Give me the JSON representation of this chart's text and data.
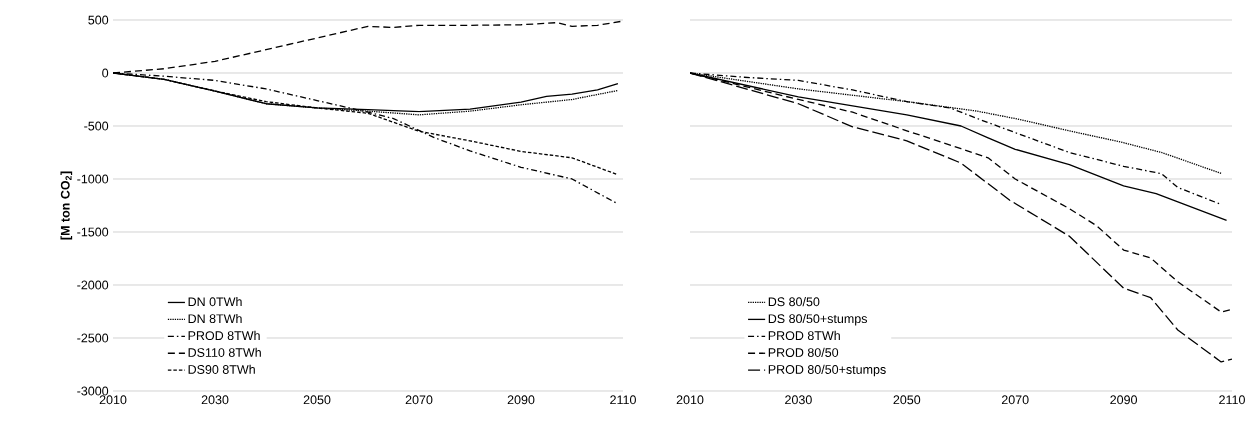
{
  "chart_data": [
    {
      "type": "line",
      "ylabel": "[M ton CO$_{2}$]",
      "xlim": [
        2010,
        2110
      ],
      "ylim": [
        -3000,
        500
      ],
      "xticks": [
        2010,
        2030,
        2050,
        2070,
        2090,
        2110
      ],
      "yticks": [
        -3000,
        -2500,
        -2000,
        -1500,
        -1000,
        -500,
        0,
        500
      ],
      "grid": "y",
      "legend": "bottom left",
      "series": [
        {
          "name": "DN 0TWh",
          "color": "#000000",
          "line_style": "solid",
          "x": [
            2010,
            2020,
            2030,
            2040,
            2050,
            2060,
            2070,
            2080,
            2090,
            2095,
            2100,
            2105,
            2109
          ],
          "values": [
            0,
            -60,
            -170,
            -290,
            -330,
            -345,
            -365,
            -340,
            -275,
            -220,
            -200,
            -160,
            -100
          ]
        },
        {
          "name": "DN 8TWh",
          "color": "#000000",
          "line_style": "dotted",
          "x": [
            2010,
            2020,
            2030,
            2040,
            2050,
            2060,
            2070,
            2080,
            2090,
            2100,
            2109
          ],
          "values": [
            0,
            -60,
            -170,
            -290,
            -330,
            -360,
            -395,
            -360,
            -300,
            -250,
            -165
          ]
        },
        {
          "name": "PROD 8TWh",
          "color": "#000000",
          "line_style": "dashdot",
          "x": [
            2010,
            2020,
            2030,
            2040,
            2050,
            2060,
            2065,
            2073,
            2080,
            2090,
            2100,
            2109
          ],
          "values": [
            0,
            -30,
            -70,
            -150,
            -260,
            -370,
            -430,
            -610,
            -735,
            -890,
            -1000,
            -1235
          ]
        },
        {
          "name": "DS110 8TWh",
          "color": "#000000",
          "line_style": "dashed",
          "x": [
            2010,
            2020,
            2030,
            2040,
            2050,
            2060,
            2065,
            2070,
            2080,
            2090,
            2097,
            2100,
            2105,
            2110
          ],
          "values": [
            0,
            40,
            110,
            220,
            330,
            440,
            430,
            450,
            450,
            455,
            475,
            440,
            450,
            490
          ]
        },
        {
          "name": "DS90 8TWh",
          "color": "#000000",
          "line_style": "short_dashed",
          "x": [
            2010,
            2020,
            2030,
            2040,
            2050,
            2060,
            2070,
            2080,
            2090,
            2100,
            2109
          ],
          "values": [
            0,
            -60,
            -170,
            -270,
            -330,
            -380,
            -550,
            -640,
            -740,
            -800,
            -960
          ]
        }
      ]
    },
    {
      "type": "line",
      "xlim": [
        2010,
        2110
      ],
      "ylim": [
        -3000,
        500
      ],
      "xticks": [
        2010,
        2030,
        2050,
        2070,
        2090,
        2110
      ],
      "yticks": [
        -3000,
        -2500,
        -2000,
        -1500,
        -1000,
        -500,
        0,
        500
      ],
      "grid": "y",
      "legend": "bottom left",
      "tick_labels": "x",
      "series": [
        {
          "name": "DS 80/50",
          "color": "#000000",
          "line_style": "dotted",
          "x": [
            2010,
            2030,
            2050,
            2063,
            2070,
            2080,
            2090,
            2097,
            2108
          ],
          "values": [
            0,
            -150,
            -270,
            -360,
            -430,
            -545,
            -658,
            -750,
            -947
          ]
        },
        {
          "name": "DS 80/50+stumps",
          "color": "#000000",
          "line_style": "solid",
          "x": [
            2010,
            2030,
            2050,
            2060,
            2065,
            2070,
            2080,
            2090,
            2096,
            2109
          ],
          "values": [
            0,
            -225,
            -395,
            -500,
            -613,
            -720,
            -865,
            -1064,
            -1139,
            -1390
          ]
        },
        {
          "name": "PROD 8TWh",
          "color": "#000000",
          "line_style": "dashdot",
          "x": [
            2010,
            2020,
            2030,
            2040,
            2050,
            2058,
            2063,
            2072,
            2080,
            2090,
            2097,
            2100,
            2108
          ],
          "values": [
            0,
            -40,
            -70,
            -160,
            -270,
            -330,
            -430,
            -600,
            -750,
            -880,
            -950,
            -1080,
            -1240
          ]
        },
        {
          "name": "PROD 80/50",
          "color": "#000000",
          "line_style": "dashed",
          "x": [
            2010,
            2030,
            2040,
            2050,
            2060,
            2065,
            2070,
            2080,
            2085,
            2090,
            2095,
            2100,
            2108,
            2110
          ],
          "values": [
            0,
            -250,
            -370,
            -545,
            -714,
            -800,
            -1000,
            -1280,
            -1440,
            -1670,
            -1745,
            -1970,
            -2255,
            -2230
          ]
        },
        {
          "name": "PROD 80/50+stumps",
          "color": "#000000",
          "line_style": "long_dashed",
          "x": [
            2010,
            2030,
            2040,
            2050,
            2060,
            2069,
            2080,
            2090,
            2095,
            2100,
            2108,
            2110
          ],
          "values": [
            0,
            -290,
            -508,
            -640,
            -850,
            -1200,
            -1540,
            -2030,
            -2120,
            -2425,
            -2726,
            -2700
          ]
        }
      ]
    }
  ]
}
